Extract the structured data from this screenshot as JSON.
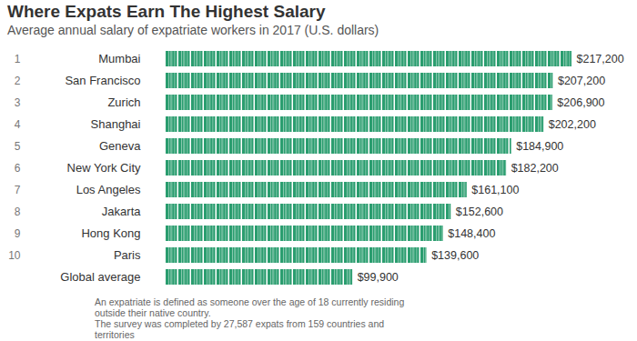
{
  "chart_data": {
    "type": "bar",
    "orientation": "horizontal",
    "title": "Where Expats Earn The Highest Salary",
    "subtitle": "Average annual salary of expatriate workers in 2017 (U.S. dollars)",
    "ranks": [
      1,
      2,
      3,
      4,
      5,
      6,
      7,
      8,
      9,
      10,
      null
    ],
    "categories": [
      "Mumbai",
      "San Francisco",
      "Zurich",
      "Shanghai",
      "Geneva",
      "New York City",
      "Los Angeles",
      "Jakarta",
      "Hong Kong",
      "Paris",
      "Global average"
    ],
    "values": [
      217200,
      207200,
      206900,
      202200,
      184900,
      182200,
      161100,
      152600,
      148400,
      139600,
      99900
    ],
    "value_labels": [
      "$217,200",
      "$207,200",
      "$206,900",
      "$202,200",
      "$184,900",
      "$182,200",
      "$161,100",
      "$152,600",
      "$148,400",
      "$139,600",
      "$99,900"
    ],
    "data_labels": true,
    "tick_labels": false,
    "color": "#2a9d6f",
    "notes": [
      "An expatriate is defined as someone over the age of 18 currently residing outside their native country.",
      "The survey was completed by 27,587 expats from 159 countries and territories"
    ]
  }
}
